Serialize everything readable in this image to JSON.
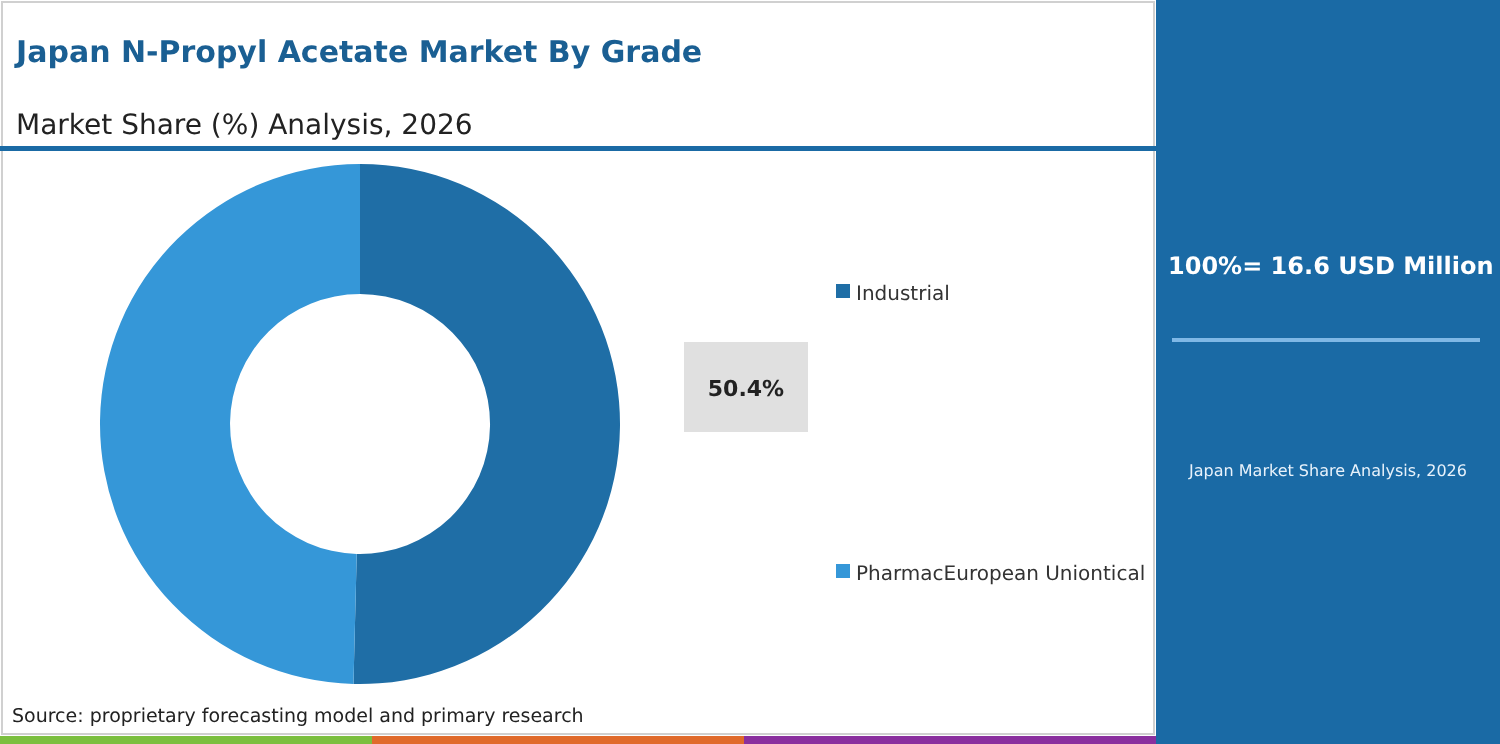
{
  "chart_data": {
    "type": "donut",
    "title": "Japan N-Propyl Acetate Market By Grade",
    "subtitle": "Market Share (%) Analysis, 2026",
    "categories": [
      "Industrial",
      "PharmacEuropean Uniontical"
    ],
    "values": [
      50.4,
      49.6
    ],
    "colors": [
      "#1f6ea6",
      "#3597d8"
    ],
    "value_labels": [
      "50.4%",
      null
    ],
    "legend": "right",
    "annotations": [
      "100%= 16.6 USD Million",
      "Japan Market Share Analysis, 2026",
      "Source: proprietary forecasting model and primary research"
    ]
  }
}
